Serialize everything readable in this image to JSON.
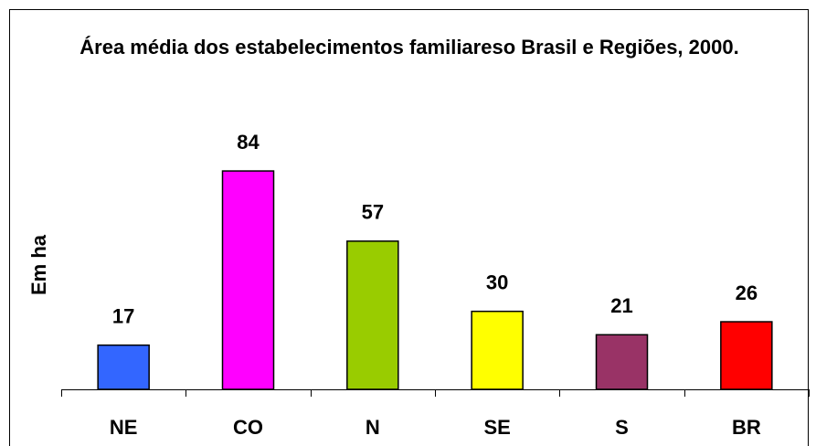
{
  "chart_data": {
    "type": "bar",
    "title": "Área média dos estabelecimentos familiareso Brasil e Regiões, 2000.",
    "ylabel": "Em ha",
    "categories": [
      "NE",
      "CO",
      "N",
      "SE",
      "S",
      "BR"
    ],
    "values": [
      17,
      84,
      57,
      30,
      21,
      26
    ],
    "colors": [
      "#3366ff",
      "#ff00ff",
      "#99cc00",
      "#ffff00",
      "#993366",
      "#ff0000"
    ],
    "ylim": [
      0,
      90
    ]
  }
}
